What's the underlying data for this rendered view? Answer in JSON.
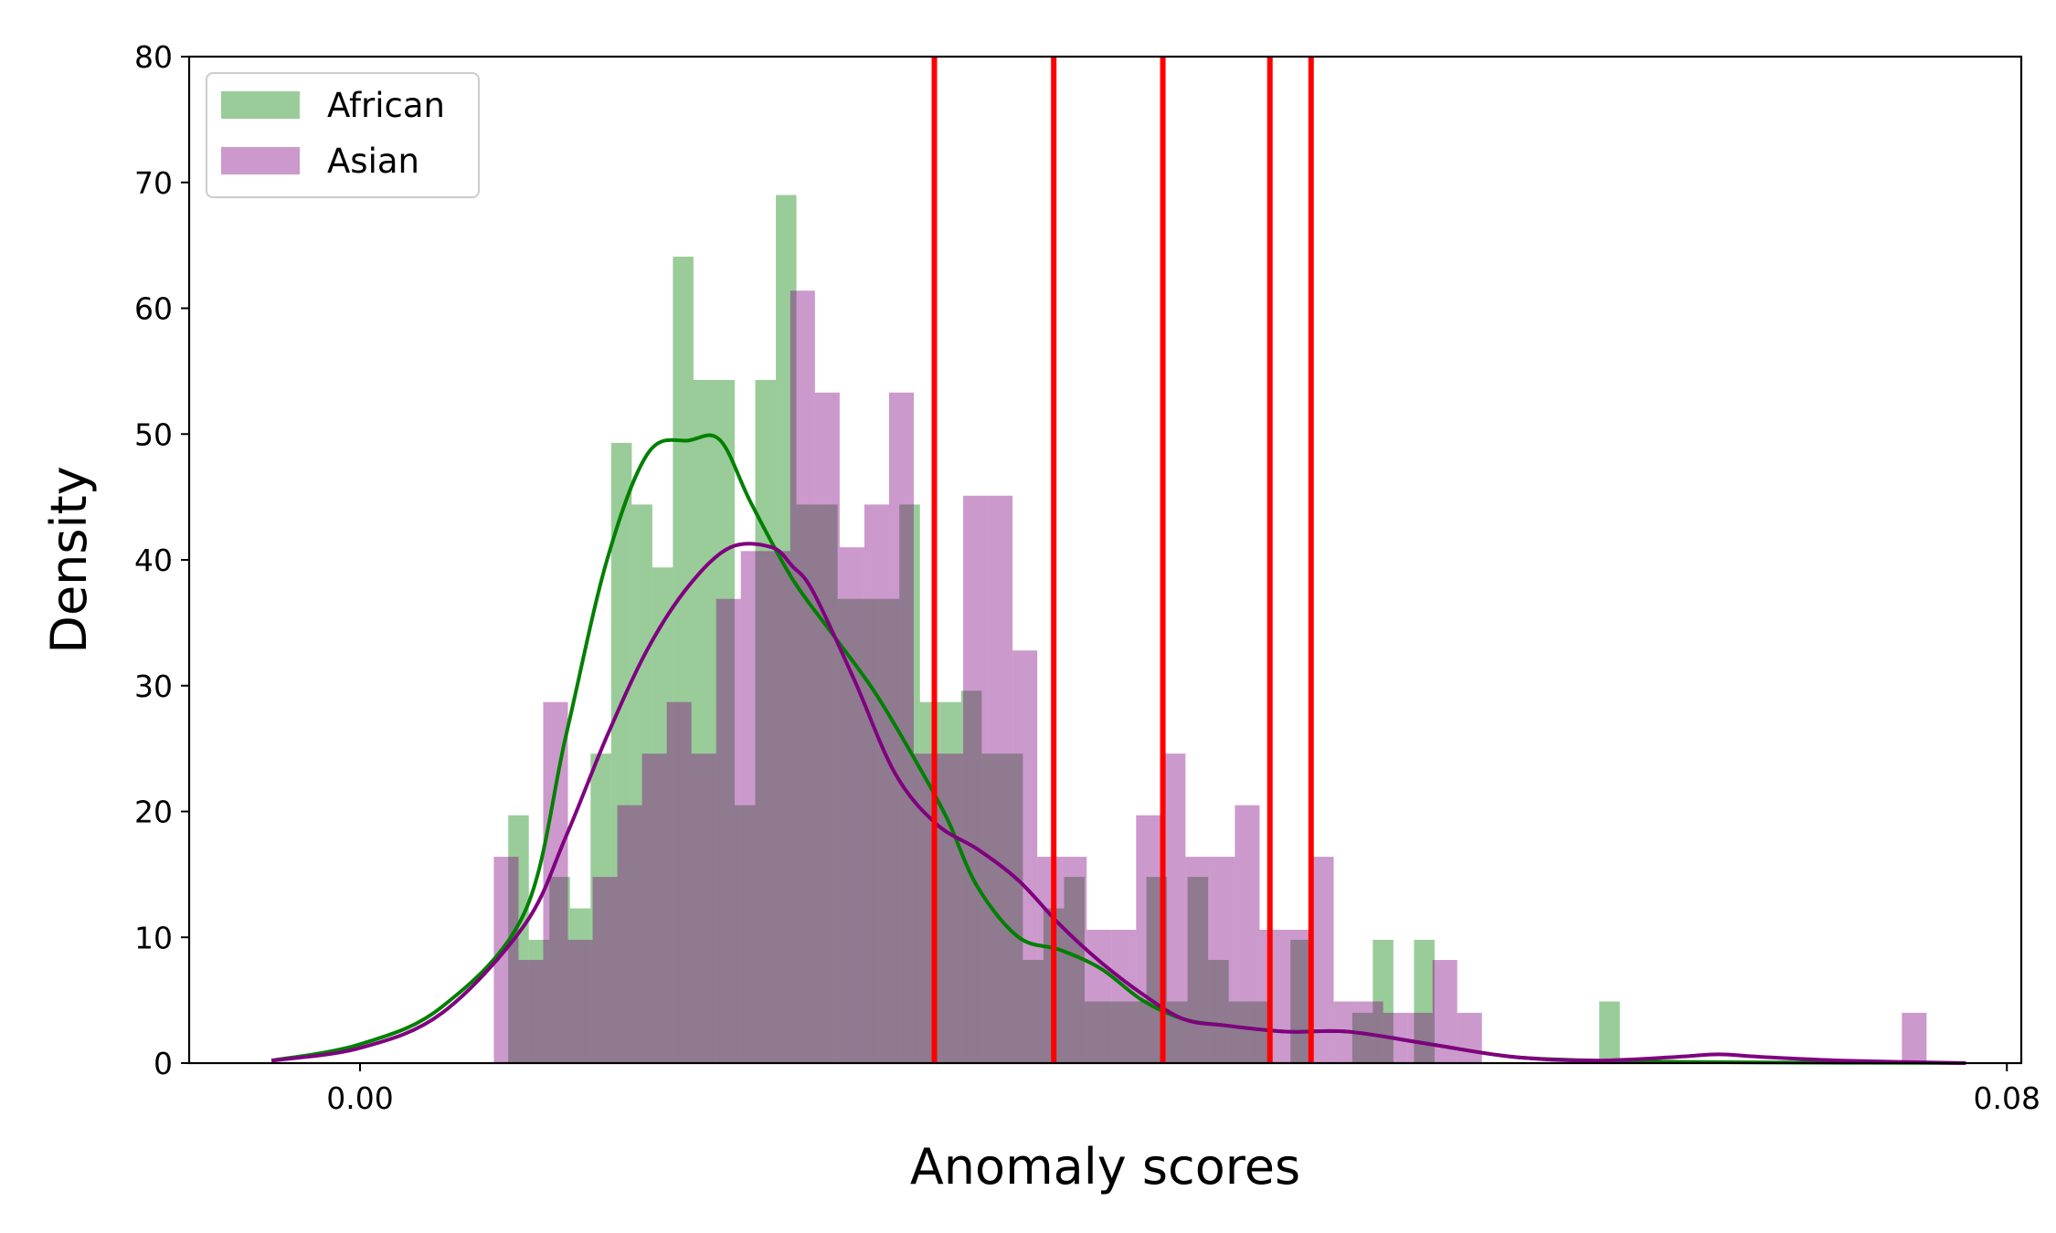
{
  "chart_data": {
    "type": "histogram",
    "xlabel": "Anomaly scores",
    "ylabel": "Density",
    "xlim": [
      -0.0083,
      0.0807
    ],
    "ylim": [
      0,
      80
    ],
    "x_ticks": [
      {
        "value": 0.0,
        "label": "0.00"
      },
      {
        "value": 0.08,
        "label": "0.08"
      }
    ],
    "y_ticks": [
      {
        "value": 0,
        "label": "0"
      },
      {
        "value": 10,
        "label": "10"
      },
      {
        "value": 20,
        "label": "20"
      },
      {
        "value": 30,
        "label": "30"
      },
      {
        "value": 40,
        "label": "40"
      },
      {
        "value": 50,
        "label": "50"
      },
      {
        "value": 60,
        "label": "60"
      },
      {
        "value": 70,
        "label": "70"
      },
      {
        "value": 80,
        "label": "80"
      }
    ],
    "legend": {
      "position": "upper-left"
    },
    "series": [
      {
        "name": "African",
        "color": "#008000",
        "alpha": 0.4,
        "bin_start": 0.0072,
        "bin_width": 0.001,
        "densities": [
          19.7,
          9.8,
          14.8,
          12.3,
          24.6,
          49.3,
          44.4,
          39.4,
          64.1,
          54.3,
          54.3,
          20.5,
          54.3,
          69.0,
          44.4,
          44.4,
          36.9,
          36.9,
          36.9,
          44.4,
          28.7,
          28.7,
          29.6,
          24.6,
          24.6,
          8.2,
          12.3,
          14.8,
          4.9,
          4.9,
          4.9,
          14.8,
          4.9,
          14.8,
          8.2,
          4.9,
          4.9,
          0,
          9.8,
          0,
          0,
          4.0,
          9.8,
          0,
          9.8,
          0,
          0,
          0,
          0,
          0,
          0,
          0,
          0,
          4.9,
          0,
          0,
          0,
          0,
          0,
          0,
          0,
          0,
          0,
          0,
          0,
          0,
          0,
          0
        ]
      },
      {
        "name": "Asian",
        "color": "#800080",
        "alpha": 0.4,
        "bin_start": 0.0065,
        "bin_width": 0.0012,
        "densities": [
          16.4,
          8.2,
          28.7,
          9.8,
          14.8,
          20.5,
          24.6,
          28.7,
          24.6,
          36.9,
          40.7,
          40.7,
          61.4,
          53.3,
          41.0,
          44.4,
          53.3,
          24.6,
          24.6,
          45.1,
          45.1,
          32.8,
          16.4,
          16.4,
          10.6,
          10.6,
          19.7,
          24.6,
          16.4,
          16.4,
          20.5,
          10.6,
          10.6,
          16.4,
          4.9,
          4.9,
          4.0,
          4.0,
          8.2,
          4.0,
          0,
          0,
          0,
          0,
          0,
          0,
          0,
          0,
          0,
          0,
          0,
          0,
          0,
          0,
          0,
          0,
          0,
          4.0,
          0,
          0
        ]
      }
    ],
    "kde": [
      {
        "name": "African",
        "color": "#008000",
        "x": [
          -0.0043,
          0.0,
          0.004,
          0.008,
          0.01,
          0.012,
          0.014,
          0.016,
          0.0175,
          0.019,
          0.021,
          0.023,
          0.025,
          0.027,
          0.0285,
          0.03,
          0.032,
          0.034,
          0.036,
          0.038,
          0.04,
          0.042,
          0.045,
          0.048,
          0.052,
          0.056,
          0.06,
          0.064,
          0.068,
          0.072,
          0.076,
          0.078
        ],
        "y": [
          0.2,
          1.5,
          4.5,
          12,
          26,
          40,
          48.5,
          49.5,
          49.5,
          44.5,
          38.5,
          34,
          29.5,
          24,
          19.5,
          14,
          10,
          9,
          7.5,
          5,
          3.5,
          3,
          2.5,
          2.5,
          1.5,
          0.5,
          0.2,
          0.1,
          0.05,
          0.03,
          0.02,
          0
        ]
      },
      {
        "name": "Asian",
        "color": "#800080",
        "x": [
          -0.0043,
          0.0,
          0.004,
          0.008,
          0.01,
          0.012,
          0.014,
          0.016,
          0.018,
          0.02,
          0.021,
          0.022,
          0.024,
          0.026,
          0.028,
          0.03,
          0.032,
          0.034,
          0.036,
          0.038,
          0.04,
          0.042,
          0.045,
          0.048,
          0.052,
          0.056,
          0.06,
          0.064,
          0.066,
          0.068,
          0.072,
          0.078
        ],
        "y": [
          0.2,
          1.2,
          4,
          11,
          18,
          26,
          33,
          38,
          41,
          41,
          39.5,
          37.5,
          30.5,
          23,
          19,
          17,
          14.5,
          11,
          8,
          5.5,
          3.5,
          3,
          2.5,
          2.5,
          1.5,
          0.5,
          0.2,
          0.5,
          0.7,
          0.5,
          0.2,
          0
        ]
      }
    ],
    "vertical_lines": {
      "color": "#ff0000",
      "x": [
        0.0279,
        0.0337,
        0.039,
        0.0442,
        0.0462
      ]
    }
  }
}
